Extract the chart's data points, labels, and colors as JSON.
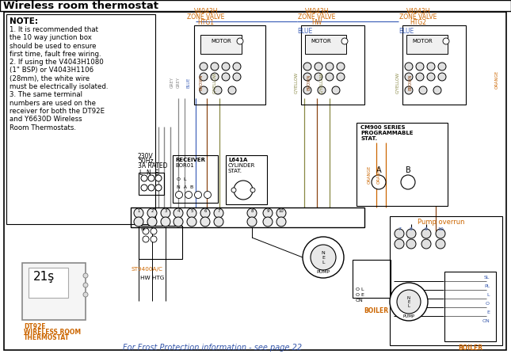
{
  "title": "Wireless room thermostat",
  "bg_color": "#ffffff",
  "note_title": "NOTE:",
  "note_lines": [
    "1. It is recommended that",
    "the 10 way junction box",
    "should be used to ensure",
    "first time, fault free wiring.",
    "2. If using the V4043H1080",
    "(1\" BSP) or V4043H1106",
    "(28mm), the white wire",
    "must be electrically isolated.",
    "3. The same terminal",
    "numbers are used on the",
    "receiver for both the DT92E",
    "and Y6630D Wireless",
    "Room Thermostats."
  ],
  "frost_label": "For Frost Protection information - see page 22",
  "dt92e_label1": "DT92E",
  "dt92e_label2": "WIRELESS ROOM",
  "dt92e_label3": "THERMOSTAT",
  "text_color_blue": "#3355aa",
  "text_color_orange": "#cc6600",
  "text_color_brown": "#8B4513",
  "wire_grey": "#888888",
  "wire_blue": "#4466bb",
  "wire_brown": "#8B4513",
  "wire_orange": "#cc6600",
  "wire_gyellow": "#888844"
}
